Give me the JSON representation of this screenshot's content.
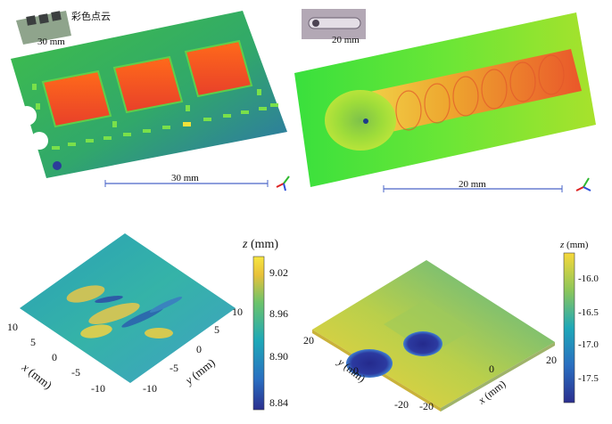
{
  "panels": {
    "top_left": {
      "inset_scale": "30 mm",
      "inset_caption": "彩色点云",
      "scalebar": "30 mm"
    },
    "top_right": {
      "inset_scale": "20 mm",
      "scalebar": "20 mm"
    },
    "bottom_left": {
      "colorbar_title_var": "z",
      "colorbar_title_unit": "(mm)",
      "colorbar_ticks": [
        "9.02",
        "8.96",
        "8.90",
        "8.84"
      ],
      "x_axis_var": "x",
      "x_axis_unit": "(mm)",
      "y_axis_var": "y",
      "y_axis_unit": "(mm)",
      "x_ticks": [
        "10",
        "5",
        "0",
        "-5",
        "-10"
      ],
      "y_ticks": [
        "-10",
        "-5",
        "0",
        "5",
        "10"
      ],
      "colors": [
        "#2b2f8f",
        "#2a6fc1",
        "#1ea8b8",
        "#6cc36b",
        "#e8c13a",
        "#f7e640"
      ]
    },
    "bottom_right": {
      "colorbar_title_var": "z",
      "colorbar_title_unit": "(mm)",
      "colorbar_ticks": [
        "-16.0",
        "-16.5",
        "-17.0",
        "-17.5"
      ],
      "x_axis_var": "x",
      "x_axis_unit": "(mm)",
      "y_axis_var": "y",
      "y_axis_unit": "(mm)",
      "y_ticks": [
        "20",
        "0",
        "-20"
      ],
      "x_ticks": [
        "-20",
        "0",
        "20"
      ]
    }
  }
}
